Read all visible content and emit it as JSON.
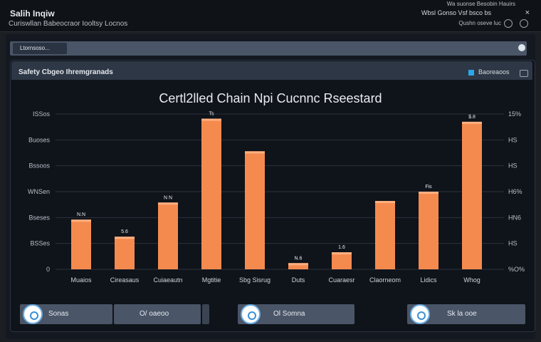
{
  "window": {
    "title": "Salih Inqiw",
    "subtitle": "Curiswllan Babeocraor Iooltsy Locnos",
    "top_right_a": "Wa suonse   Besobin Hauirs",
    "top_right_b": "Wbsl Gonso   Vsf   bsco bs",
    "top_right_c": "Qushn oseve luc"
  },
  "subbar": {
    "tab_label": "Ltornsoso..."
  },
  "panel": {
    "title": "Safety Cbgeo Ihremgranads",
    "legend_label": "Baoreaoos"
  },
  "chart_data": {
    "type": "bar",
    "title": "Certl2lled Chain Npi Cucnnc Rseestard",
    "categories": [
      "Muaios",
      "Cireasaus",
      "Cuiaeautn",
      "Mgtitie",
      "Sbg Sisrug",
      "Duts",
      "Cuaraesr",
      "Claorneom",
      "Lidics",
      "Whog"
    ],
    "values": [
      32,
      21,
      43,
      97,
      76,
      4,
      11,
      44,
      50,
      95
    ],
    "data_labels": [
      "N.N",
      "5.6",
      "N N",
      "Ts",
      "",
      "N.6",
      "1.6",
      "",
      "Fis",
      "$.8"
    ],
    "y_left_ticks": [
      "0",
      "BSSes",
      "Bseses",
      "WNSen",
      "Bssoos",
      "Buoses",
      "ISSos"
    ],
    "y_right_ticks": [
      "%O%",
      "HS",
      "HN6",
      "H6%",
      "HS",
      "HS",
      "15%"
    ],
    "ylim": [
      0,
      100
    ],
    "bar_color": "#f58a4f",
    "grid": true
  },
  "footer": {
    "btn1": "Sonas",
    "btn2": "O/ oaeoo",
    "btn3": "Ol Somna",
    "btn4": "Sk la ooe"
  },
  "colors": {
    "accent": "#2aa7e8",
    "bar": "#f58a4f",
    "panel_bg": "#0f131a"
  }
}
